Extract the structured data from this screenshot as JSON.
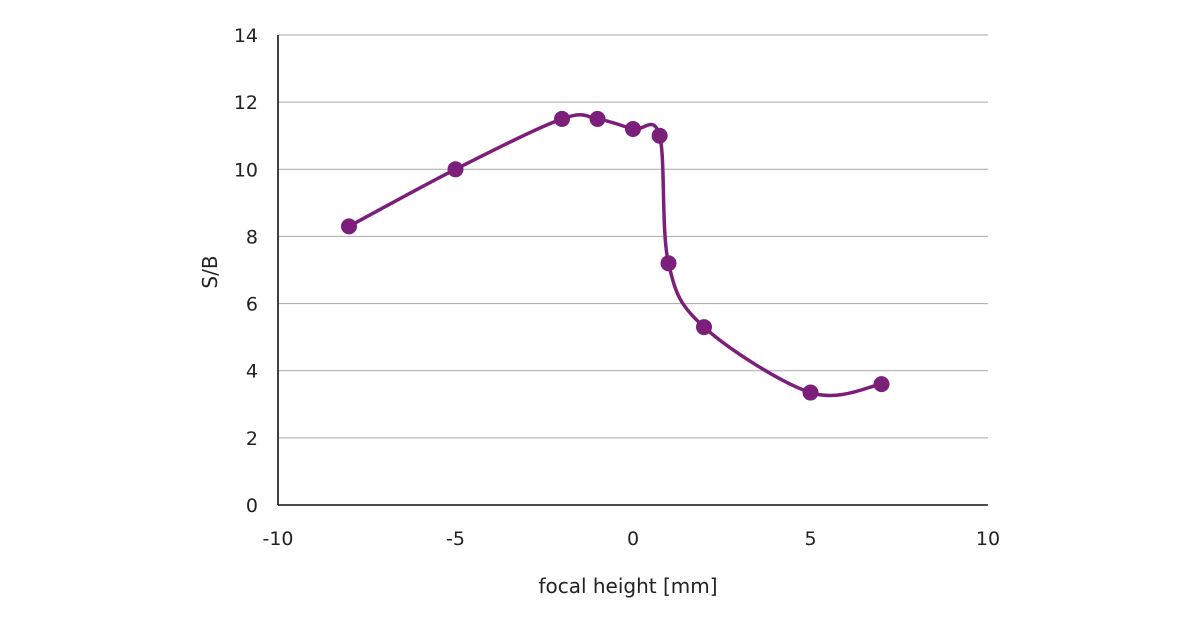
{
  "chart_data": {
    "type": "line",
    "title": "",
    "xlabel": "focal height [mm]",
    "ylabel": "S/B",
    "xlim": [
      -10,
      10
    ],
    "ylim": [
      0,
      14
    ],
    "xticks": [
      -10,
      -5,
      0,
      5,
      10
    ],
    "xtick_labels": [
      "-10",
      "-5",
      "0",
      "5",
      "10"
    ],
    "yticks": [
      0,
      2,
      4,
      6,
      8,
      10,
      12,
      14
    ],
    "ytick_labels": [
      "0",
      "2",
      "4",
      "6",
      "8",
      "10",
      "12",
      "14"
    ],
    "grid": "horizontal",
    "legend": "none",
    "color": "#7b1f7a",
    "series": [
      {
        "x": [
          -8,
          -5,
          -2,
          -1,
          0,
          0.75,
          1,
          2,
          5,
          7
        ],
        "y": [
          8.3,
          10.0,
          11.5,
          11.5,
          11.2,
          11.0,
          7.2,
          5.3,
          3.35,
          3.6
        ]
      }
    ]
  }
}
